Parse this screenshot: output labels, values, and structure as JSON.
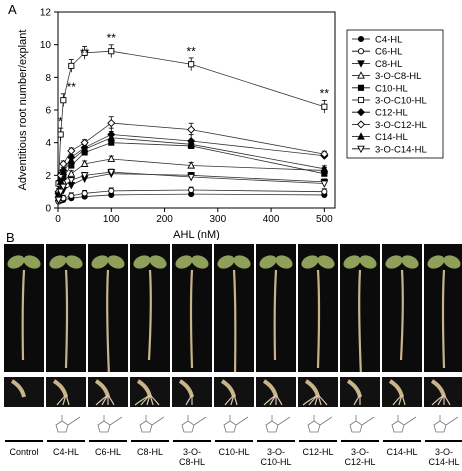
{
  "figure": {
    "panel_a_letter": "A",
    "panel_b_letter": "B"
  },
  "chart_data": {
    "type": "line",
    "xlabel": "AHL (nM)",
    "ylabel": "Adventitious root number/explant",
    "xlim": [
      0,
      520
    ],
    "ylim": [
      0,
      12
    ],
    "xticks": [
      0,
      100,
      200,
      300,
      400,
      500
    ],
    "yticks": [
      0,
      2,
      4,
      6,
      8,
      10,
      12
    ],
    "x": [
      1,
      5,
      10,
      25,
      50,
      100,
      250,
      500
    ],
    "legend_position": "right",
    "series": [
      {
        "name": "C4-HL",
        "marker": "filled-circle",
        "values": [
          0.4,
          0.45,
          0.5,
          0.6,
          0.7,
          0.8,
          0.85,
          0.8
        ]
      },
      {
        "name": "C6-HL",
        "marker": "open-circle",
        "values": [
          0.4,
          0.5,
          0.6,
          0.75,
          0.9,
          1.05,
          1.1,
          1.0
        ]
      },
      {
        "name": "C8-HL",
        "marker": "filled-triangle-down",
        "values": [
          0.5,
          0.9,
          1.1,
          1.4,
          1.8,
          2.1,
          2.0,
          1.6
        ]
      },
      {
        "name": "3-O-C8-HL",
        "marker": "open-triangle-up",
        "values": [
          0.6,
          1.2,
          1.6,
          2.1,
          2.7,
          3.0,
          2.6,
          2.3
        ]
      },
      {
        "name": "C10-HL",
        "marker": "filled-square",
        "values": [
          0.7,
          1.4,
          1.9,
          2.6,
          3.4,
          4.0,
          3.8,
          2.1
        ]
      },
      {
        "name": "3-O-C10-HL",
        "marker": "open-square",
        "values": [
          1.5,
          4.5,
          6.6,
          8.7,
          9.5,
          9.6,
          8.8,
          6.2
        ]
      },
      {
        "name": "C12-HL",
        "marker": "filled-diamond",
        "values": [
          0.9,
          1.7,
          2.3,
          3.1,
          3.7,
          4.5,
          4.1,
          3.2
        ]
      },
      {
        "name": "3-O-C12-HL",
        "marker": "open-diamond",
        "values": [
          1.0,
          2.0,
          2.7,
          3.5,
          4.0,
          5.2,
          4.8,
          3.3
        ]
      },
      {
        "name": "C14-HL",
        "marker": "filled-triangle-up",
        "values": [
          0.8,
          1.6,
          2.2,
          2.9,
          3.6,
          4.3,
          3.9,
          2.4
        ]
      },
      {
        "name": "3-O-C14-HL",
        "marker": "open-triangle-down",
        "values": [
          0.5,
          1.0,
          1.3,
          1.7,
          2.0,
          2.2,
          1.9,
          1.5
        ]
      }
    ],
    "error": 0.3,
    "annotations": [
      {
        "text": "*",
        "x": 10,
        "y": 4.5
      },
      {
        "text": "**",
        "x": 25,
        "y": 6.6
      },
      {
        "text": "**",
        "x": 50,
        "y": 8.7
      },
      {
        "text": "**",
        "x": 100,
        "y": 9.6
      },
      {
        "text": "**",
        "x": 250,
        "y": 8.8
      },
      {
        "text": "**",
        "x": 500,
        "y": 6.2
      }
    ]
  },
  "panel_b": {
    "treatments": [
      {
        "label": "Control",
        "has_structure": false
      },
      {
        "label": "C4-HL",
        "has_structure": true
      },
      {
        "label": "C6-HL",
        "has_structure": true
      },
      {
        "label": "C8-HL",
        "has_structure": true
      },
      {
        "label": "3-O-\nC8-HL",
        "has_structure": true
      },
      {
        "label": "C10-HL",
        "has_structure": true
      },
      {
        "label": "3-O-\nC10-HL",
        "has_structure": true
      },
      {
        "label": "C12-HL",
        "has_structure": true
      },
      {
        "label": "3-O-\nC12-HL",
        "has_structure": true
      },
      {
        "label": "C14-HL",
        "has_structure": true
      },
      {
        "label": "3-O-\nC14-HL",
        "has_structure": true
      }
    ],
    "colors": {
      "background": "#0b0b0b",
      "leaf": "#8fa05a",
      "stem": "#c9b48a"
    }
  }
}
